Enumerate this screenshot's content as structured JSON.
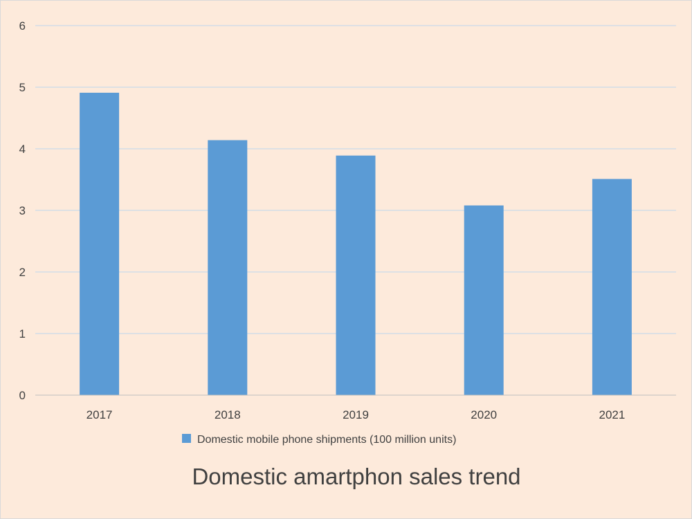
{
  "chart_data": {
    "type": "bar",
    "title": "Domestic amartphon sales trend",
    "xlabel": "",
    "ylabel": "",
    "categories": [
      "2017",
      "2018",
      "2019",
      "2020",
      "2021"
    ],
    "series": [
      {
        "name": "Domestic mobile phone shipments (100 million units)",
        "values": [
          4.91,
          4.14,
          3.89,
          3.08,
          3.51
        ]
      }
    ],
    "ylim": [
      0,
      6
    ],
    "yticks": [
      0,
      1,
      2,
      3,
      4,
      5,
      6
    ],
    "grid": true,
    "legend_position": "bottom"
  },
  "colors": {
    "background": "#fdeadb",
    "bar": "#5b9bd5",
    "grid": "#bdd7ee",
    "axis": "#bfbfbf",
    "text": "#404040",
    "title": "#404040"
  }
}
